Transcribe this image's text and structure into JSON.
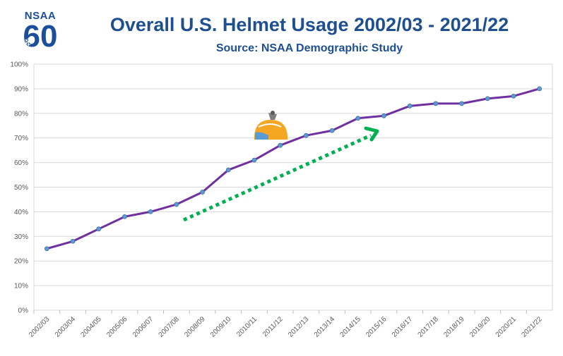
{
  "logo": {
    "text": "NSAA",
    "number": "60",
    "flake": "❄"
  },
  "chart_data": {
    "type": "line",
    "title": "Overall U.S. Helmet Usage 2002/03 - 2021/22",
    "subtitle": "Source: NSAA Demographic Study",
    "categories": [
      "2002/03",
      "2003/04",
      "2004/05",
      "2005/06",
      "2006/07",
      "2007/08",
      "2008/09",
      "2009/10",
      "2010/11",
      "2011/12",
      "2012/13",
      "2013/14",
      "2014/15",
      "2015/16",
      "2016/17",
      "2017/18",
      "2018/19",
      "2019/20",
      "2020/21",
      "2021/22"
    ],
    "series": [
      {
        "name": "Helmet usage",
        "values": [
          25,
          28,
          33,
          38,
          40,
          43,
          48,
          57,
          61,
          67,
          71,
          73,
          78,
          79,
          83,
          84,
          84,
          86,
          87,
          90
        ]
      }
    ],
    "ylim": [
      0,
      100
    ],
    "ytick_step": 10,
    "ytick_suffix": "%",
    "grid": true,
    "legend": "none",
    "xlabel": "",
    "ylabel": "",
    "colors": {
      "line": "#7030a0",
      "marker": "#5b9bd5",
      "arrow": "#00b050",
      "grid": "#d9d9d9",
      "title": "#1d4f91"
    },
    "annotations": [
      {
        "type": "trend-arrow",
        "description": "green dotted upward arrow"
      },
      {
        "type": "helmet-icon"
      }
    ]
  }
}
